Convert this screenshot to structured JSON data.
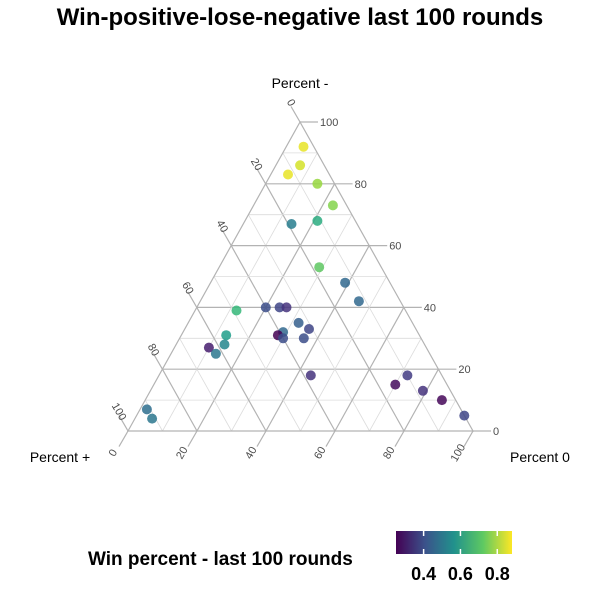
{
  "chart_data": {
    "type": "ternary",
    "title": "Win-positive-lose-negative last 100 rounds",
    "axes": {
      "top": "Percent -",
      "left": "Percent +",
      "right": "Percent 0"
    },
    "ticks": [
      0,
      20,
      40,
      60,
      80,
      100
    ],
    "grid": true,
    "legend": {
      "title": "Win percent - last 100 rounds",
      "position": "bottom",
      "colorscale": "viridis",
      "range": [
        0.25,
        0.88
      ],
      "tick_labels": [
        "0.4",
        "0.6",
        "0.8"
      ],
      "tick_values": [
        0.4,
        0.6,
        0.8
      ]
    },
    "points": [
      {
        "minus": 92,
        "plus": 3,
        "zero": 5,
        "win": 0.86
      },
      {
        "minus": 86,
        "plus": 7,
        "zero": 7,
        "win": 0.84
      },
      {
        "minus": 83,
        "plus": 12,
        "zero": 5,
        "win": 0.86
      },
      {
        "minus": 80,
        "plus": 5,
        "zero": 15,
        "win": 0.78
      },
      {
        "minus": 73,
        "plus": 4,
        "zero": 23,
        "win": 0.76
      },
      {
        "minus": 68,
        "plus": 11,
        "zero": 21,
        "win": 0.64
      },
      {
        "minus": 67,
        "plus": 19,
        "zero": 14,
        "win": 0.52
      },
      {
        "minus": 53,
        "plus": 18,
        "zero": 29,
        "win": 0.72
      },
      {
        "minus": 48,
        "plus": 13,
        "zero": 39,
        "win": 0.46
      },
      {
        "minus": 42,
        "plus": 12,
        "zero": 46,
        "win": 0.46
      },
      {
        "minus": 39,
        "plus": 49,
        "zero": 12,
        "win": 0.67
      },
      {
        "minus": 40,
        "plus": 40,
        "zero": 20,
        "win": 0.4
      },
      {
        "minus": 40,
        "plus": 36,
        "zero": 24,
        "win": 0.38
      },
      {
        "minus": 40,
        "plus": 34,
        "zero": 26,
        "win": 0.34
      },
      {
        "minus": 35,
        "plus": 33,
        "zero": 32,
        "win": 0.44
      },
      {
        "minus": 33,
        "plus": 31,
        "zero": 36,
        "win": 0.38
      },
      {
        "minus": 32,
        "plus": 39,
        "zero": 29,
        "win": 0.46
      },
      {
        "minus": 31,
        "plus": 41,
        "zero": 28,
        "win": 0.24
      },
      {
        "minus": 30,
        "plus": 34,
        "zero": 36,
        "win": 0.4
      },
      {
        "minus": 30,
        "plus": 40,
        "zero": 30,
        "win": 0.4
      },
      {
        "minus": 31,
        "plus": 56,
        "zero": 13,
        "win": 0.6
      },
      {
        "minus": 28,
        "plus": 58,
        "zero": 14,
        "win": 0.54
      },
      {
        "minus": 27,
        "plus": 63,
        "zero": 10,
        "win": 0.3
      },
      {
        "minus": 25,
        "plus": 62,
        "zero": 13,
        "win": 0.5
      },
      {
        "minus": 18,
        "plus": 38,
        "zero": 44,
        "win": 0.34
      },
      {
        "minus": 15,
        "plus": 15,
        "zero": 70,
        "win": 0.27
      },
      {
        "minus": 18,
        "plus": 10,
        "zero": 72,
        "win": 0.36
      },
      {
        "minus": 13,
        "plus": 8,
        "zero": 79,
        "win": 0.34
      },
      {
        "minus": 10,
        "plus": 4,
        "zero": 86,
        "win": 0.26
      },
      {
        "minus": 5,
        "plus": 0,
        "zero": 95,
        "win": 0.38
      },
      {
        "minus": 7,
        "plus": 91,
        "zero": 2,
        "win": 0.48
      },
      {
        "minus": 4,
        "plus": 91,
        "zero": 5,
        "win": 0.5
      }
    ]
  }
}
